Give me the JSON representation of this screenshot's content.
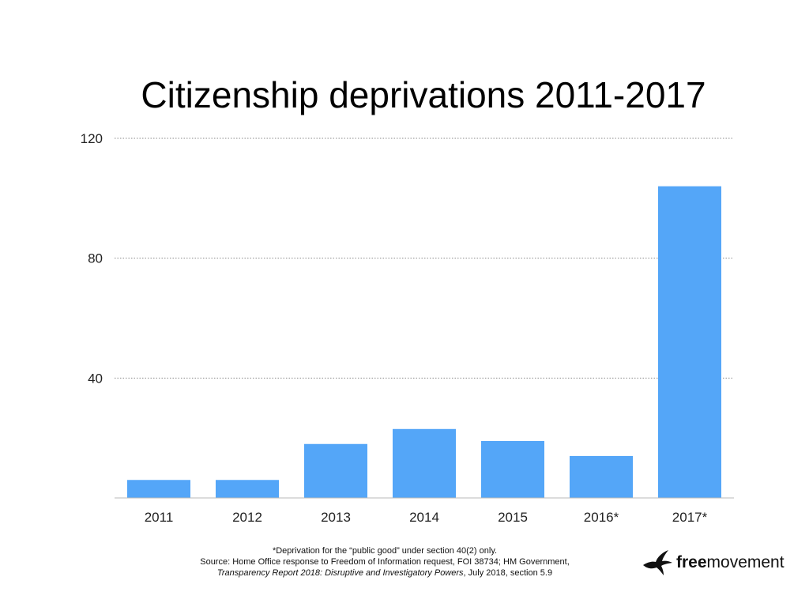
{
  "chart_data": {
    "type": "bar",
    "title": "Citizenship deprivations 2011-2017",
    "categories": [
      "2011",
      "2012",
      "2013",
      "2014",
      "2015",
      "2016*",
      "2017*"
    ],
    "values": [
      6,
      6,
      18,
      23,
      19,
      14,
      104
    ],
    "xlabel": "",
    "ylabel": "",
    "ylim": [
      0,
      120
    ],
    "yticks": [
      40,
      80,
      120
    ],
    "ytick_labels": [
      "40",
      "80",
      "120"
    ],
    "grid": true,
    "grid_style": "dotted",
    "bar_color": "#54a6f8",
    "legend": "none"
  },
  "footnote": {
    "line1": "*Deprivation for the “public good” under section 40(2) only.",
    "line2": "Source: Home Office response to Freedom of Information request, FOI 38734; HM Government,",
    "line3_italic": "Transparency Report 2018: Disruptive and Investigatory Powers",
    "line3_rest": ", July 2018, section 5.9"
  },
  "logo": {
    "icon": "bird-icon",
    "bold_part": "free",
    "regular_part": "movement"
  }
}
